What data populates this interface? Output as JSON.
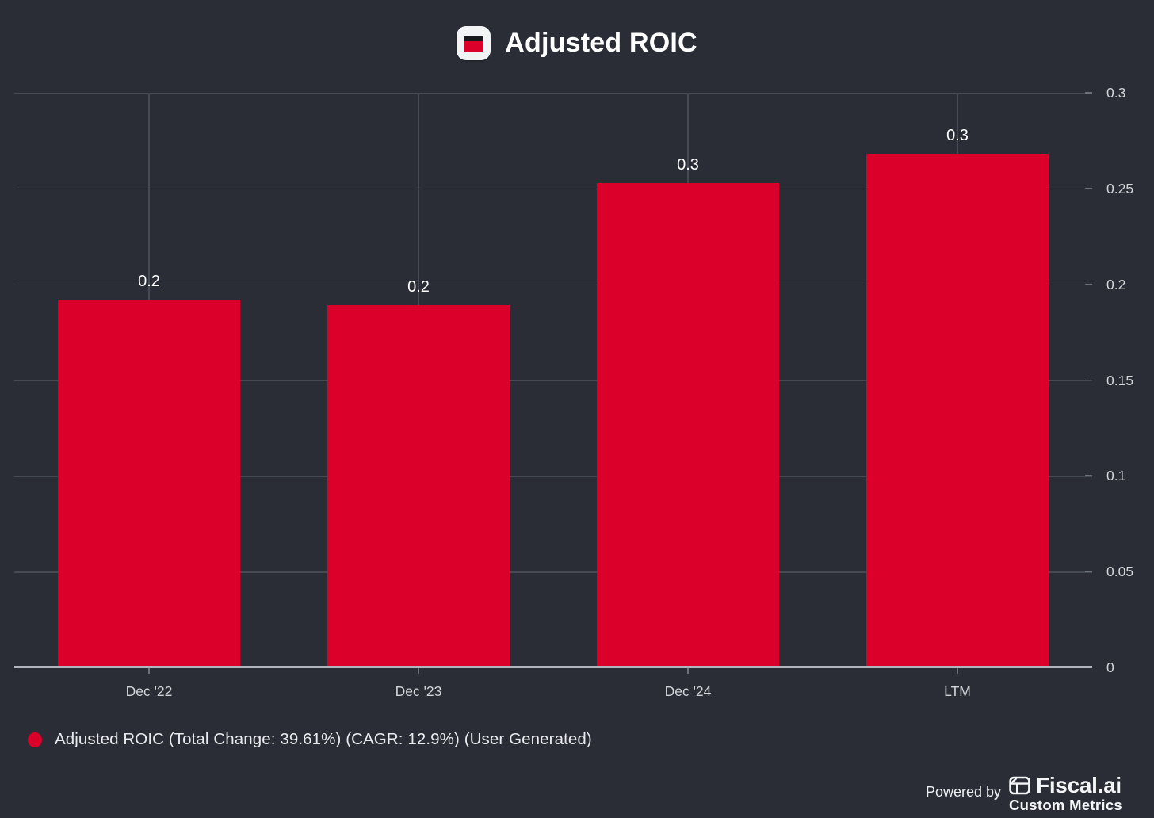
{
  "chart_data": {
    "type": "bar",
    "title": "Adjusted ROIC",
    "series_name": "Adjusted ROIC",
    "categories": [
      "Dec '22",
      "Dec '23",
      "Dec '24",
      "LTM"
    ],
    "values": [
      0.192,
      0.189,
      0.253,
      0.268
    ],
    "value_labels": [
      "0.2",
      "0.2",
      "0.3",
      "0.3"
    ],
    "xlabel": "",
    "ylabel": "",
    "ylim": [
      0,
      0.3
    ],
    "y_ticks": [
      0,
      0.05,
      0.1,
      0.15,
      0.2,
      0.25,
      0.3
    ],
    "y_tick_labels": [
      "0",
      "0.05",
      "0.1",
      "0.15",
      "0.2",
      "0.25",
      "0.3"
    ],
    "y_axis_side": "right",
    "grid": true,
    "legend_position": "bottom-left",
    "annotations": [
      "Total Change: 39.61%",
      "CAGR: 12.9%",
      "User Generated"
    ]
  },
  "legend": {
    "label": "Adjusted ROIC (Total Change: 39.61%) (CAGR: 12.9%) (User Generated)"
  },
  "footer": {
    "powered_by": "Powered by",
    "brand": "Fiscal.ai",
    "brand_sub": "Custom Metrics"
  },
  "colors": {
    "background": "#2b2d36",
    "bar": "#db0029",
    "grid": "#464a53",
    "axis": "#b2b5bd",
    "tick": "#6c707a",
    "text_primary": "#ffffff",
    "text_secondary": "#d3d5d9",
    "icon_bg": "#f2f3f5",
    "icon_black": "#17191f"
  }
}
